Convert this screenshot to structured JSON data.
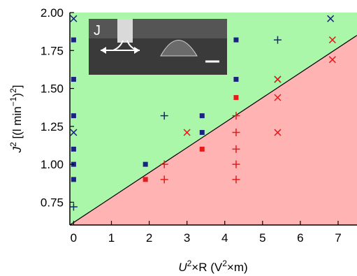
{
  "chart_data": {
    "type": "scatter",
    "title": "",
    "xlabel": {
      "var": "U",
      "sup": "2",
      "rest": "×R (V",
      "unit_sup": "2",
      "unit_rest": "×m)"
    },
    "ylabel": {
      "var": "J",
      "sup": "2",
      "rest": " [(l min",
      "exp": "−1",
      "close": ")",
      "sup2": "2",
      "end": "]"
    },
    "xlim": [
      -0.1,
      7.5
    ],
    "ylim": [
      0.6,
      2.0
    ],
    "x_ticks": [
      0,
      1,
      2,
      3,
      4,
      5,
      6,
      7
    ],
    "x_tick_labels": [
      "0",
      "1",
      "2",
      "3",
      "4",
      "5",
      "6",
      "7"
    ],
    "y_ticks": [
      0.75,
      1.0,
      1.25,
      1.5,
      1.75,
      2.0
    ],
    "y_tick_labels": [
      "0.75",
      "1.00",
      "1.25",
      "1.50",
      "1.75",
      "2.00"
    ],
    "grid": false,
    "regions": {
      "boundary": [
        [
          -0.1,
          0.6
        ],
        [
          7.5,
          1.85
        ]
      ],
      "upper_color": "#aaf7aa",
      "lower_color": "#ffb3b3"
    },
    "colors": {
      "blue": "#1a237e",
      "red": "#e51b1b"
    },
    "inset": {
      "label": "J"
    },
    "series": [
      {
        "marker": "square",
        "color": "#1a237e",
        "points": [
          [
            0,
            1.82
          ],
          [
            0,
            1.56
          ],
          [
            0,
            1.32
          ],
          [
            0,
            1.1
          ],
          [
            0,
            1.0
          ],
          [
            0,
            0.9
          ],
          [
            1.9,
            1.0
          ],
          [
            3.4,
            1.32
          ],
          [
            3.4,
            1.21
          ],
          [
            4.3,
            1.82
          ],
          [
            4.3,
            1.56
          ]
        ]
      },
      {
        "marker": "square",
        "color": "#e51b1b",
        "points": [
          [
            1.9,
            0.9
          ],
          [
            3.4,
            1.1
          ],
          [
            4.3,
            1.44
          ]
        ]
      },
      {
        "marker": "cross",
        "color": "#1a237e",
        "points": [
          [
            0,
            1.96
          ],
          [
            0,
            1.21
          ],
          [
            5.4,
            1.56
          ],
          [
            6.8,
            1.96
          ]
        ]
      },
      {
        "marker": "cross",
        "color": "#e51b1b",
        "points": [
          [
            3.0,
            1.21
          ],
          [
            5.4,
            1.56
          ],
          [
            5.4,
            1.44
          ],
          [
            5.4,
            1.21
          ],
          [
            6.85,
            1.82
          ],
          [
            6.85,
            1.69
          ]
        ]
      },
      {
        "marker": "plus",
        "color": "#1a237e",
        "points": [
          [
            0,
            0.72
          ],
          [
            2.4,
            1.32
          ],
          [
            5.4,
            1.82
          ]
        ]
      },
      {
        "marker": "plus",
        "color": "#e51b1b",
        "points": [
          [
            2.4,
            1.0
          ],
          [
            2.4,
            0.9
          ],
          [
            4.3,
            1.32
          ],
          [
            4.3,
            1.21
          ],
          [
            4.3,
            1.1
          ],
          [
            4.3,
            1.0
          ],
          [
            4.3,
            0.9
          ]
        ]
      }
    ]
  }
}
